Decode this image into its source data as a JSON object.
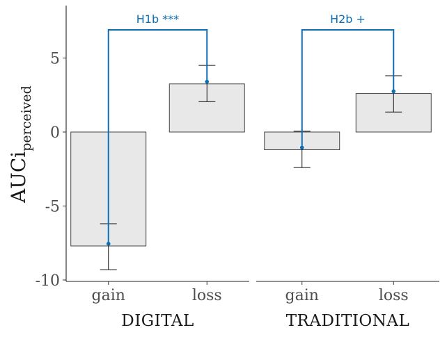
{
  "chart_data": {
    "type": "bar",
    "ylabel": "AUCi",
    "ylabel_subscript": "perceived",
    "ylim": [
      -10,
      8.5
    ],
    "yticks": [
      -10,
      -5,
      0,
      5
    ],
    "ytick_labels": [
      "-10",
      "-5",
      "0",
      "5"
    ],
    "facets": [
      {
        "name": "DIGITAL",
        "categories": [
          "gain",
          "loss"
        ],
        "values": [
          -7.7,
          3.25
        ],
        "error_bars": [
          [
            -9.3,
            -6.2
          ],
          [
            2.05,
            4.5
          ]
        ],
        "points": [
          -7.55,
          3.4
        ],
        "annotation": "H1b ***"
      },
      {
        "name": "TRADITIONAL",
        "categories": [
          "gain",
          "loss"
        ],
        "values": [
          -1.2,
          2.6
        ],
        "error_bars": [
          [
            -2.4,
            0.05
          ],
          [
            1.35,
            3.8
          ]
        ],
        "points": [
          -1.05,
          2.75
        ],
        "annotation": "H2b +"
      }
    ],
    "bar_fill": "#e8e8e8",
    "bar_stroke": "#333333",
    "annotation_color": "#0a6fb4",
    "grid": false
  }
}
